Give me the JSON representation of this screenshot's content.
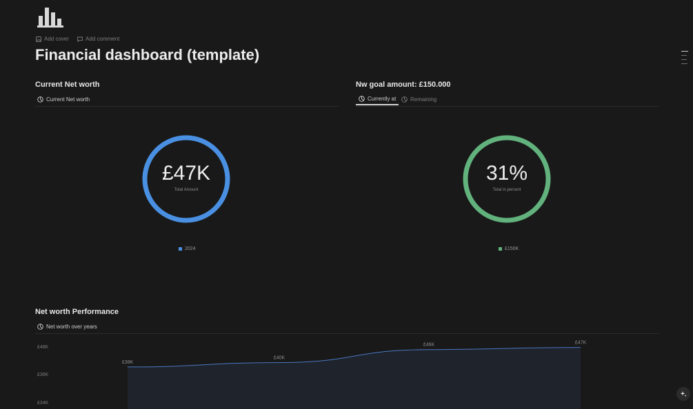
{
  "page": {
    "title": "Financial dashboard (template)",
    "icon": "bar-chart-icon"
  },
  "actions": {
    "add_cover": "Add cover",
    "add_comment": "Add comment"
  },
  "net_worth": {
    "heading": "Current Net worth",
    "tab_label": "Current Net worth",
    "donut": {
      "value": "£47K",
      "caption": "Total Amount",
      "color": "#4a90e2",
      "fraction": 1.0
    },
    "legend": "2024"
  },
  "goal": {
    "heading": "Nw goal amount:  £150.000",
    "tabs": [
      {
        "label": "Currently at",
        "active": true
      },
      {
        "label": "Remaining",
        "active": false
      }
    ],
    "donut": {
      "value": "31%",
      "caption": "Total in percent",
      "color": "#62b27d",
      "fraction": 1.0
    },
    "legend": "£150K"
  },
  "performance": {
    "heading": "Net worth Performance",
    "tab_label": "Net worth over years"
  },
  "chart_data": {
    "type": "area",
    "x": [
      "",
      "",
      "",
      ""
    ],
    "series": [
      {
        "values": [
          38,
          40,
          46,
          47
        ]
      }
    ],
    "data_labels": [
      "£38K",
      "£40K",
      "£46K",
      "£47K"
    ],
    "y_tick_labels": [
      "£48K",
      "£36K",
      "£34K"
    ],
    "line_color": "#4a78c4",
    "fill_color": "#1f232b"
  }
}
